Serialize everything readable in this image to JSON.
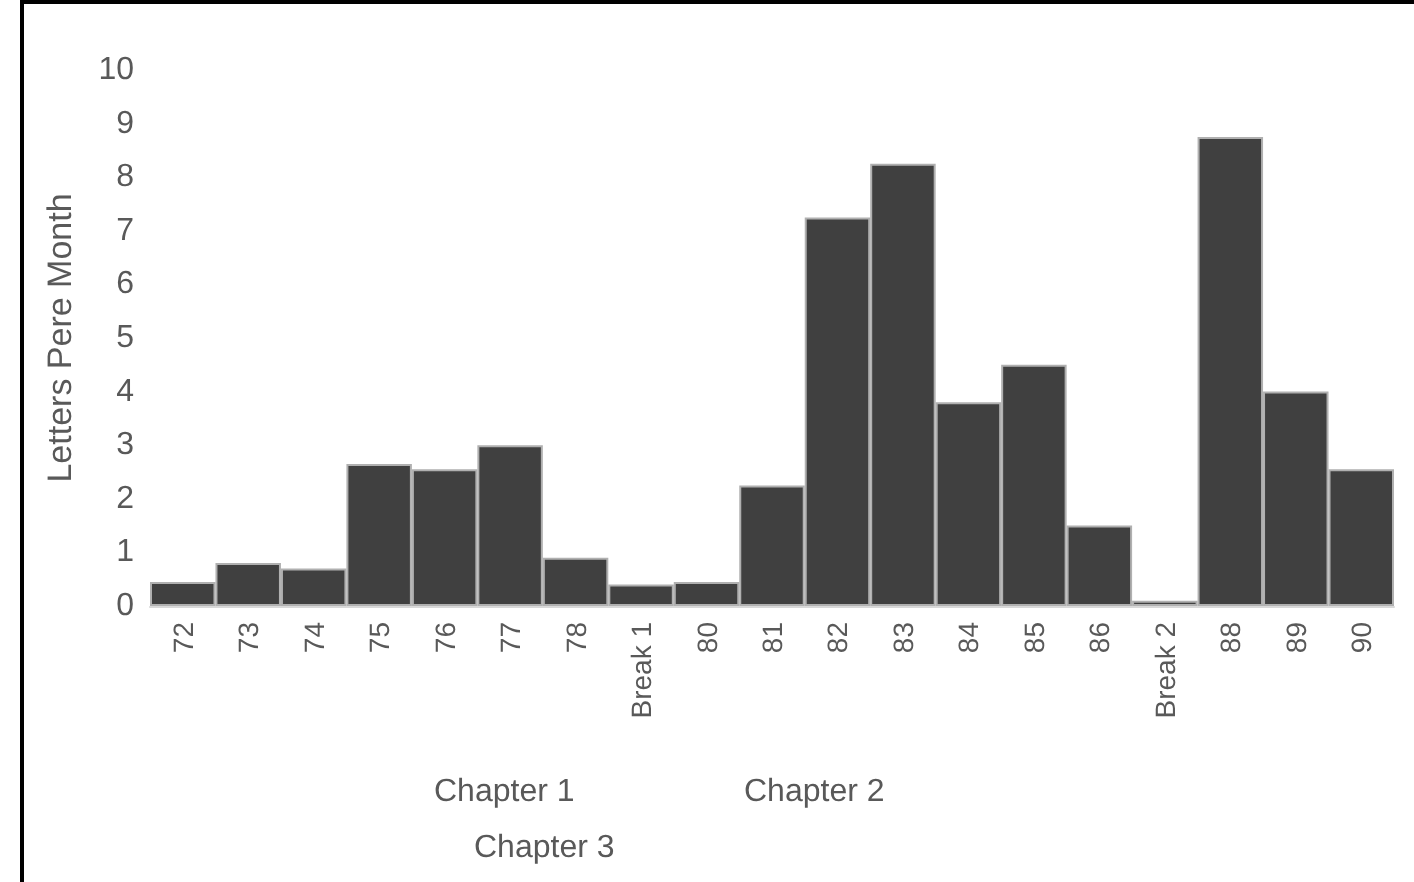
{
  "chart_data": {
    "type": "bar",
    "ylabel": "Letters Pere Month",
    "categories": [
      "72",
      "73",
      "74",
      "75",
      "76",
      "77",
      "78",
      "Break 1",
      "80",
      "81",
      "82",
      "83",
      "84",
      "85",
      "86",
      "Break 2",
      "88",
      "89",
      "90"
    ],
    "values": [
      0.45,
      0.8,
      0.7,
      2.65,
      2.55,
      3.0,
      0.9,
      0.4,
      0.45,
      2.25,
      7.25,
      8.25,
      3.8,
      4.5,
      1.5,
      0.1,
      8.75,
      4.0,
      2.55
    ],
    "color": "#404040",
    "ylim": [
      0,
      10
    ],
    "yticks": [
      0,
      1,
      2,
      3,
      4,
      5,
      6,
      7,
      8,
      9,
      10
    ],
    "grid": false,
    "annotations": [
      "Chapter 1",
      "Chapter 2",
      "Chapter 3"
    ]
  }
}
